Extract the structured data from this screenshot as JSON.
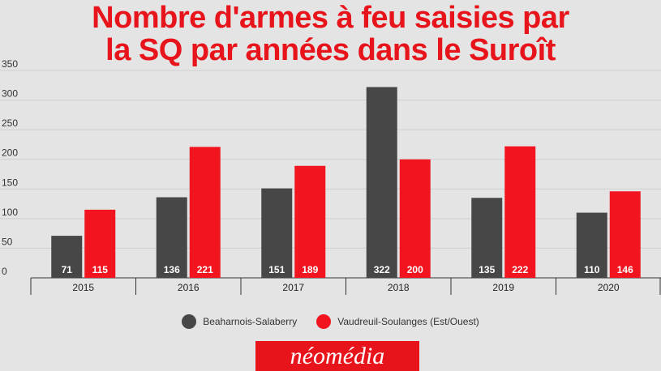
{
  "title_lines": [
    "Nombre d'armes à feu saisies par",
    "la SQ par années dans le Suroît"
  ],
  "brand": "néomédia",
  "colors": {
    "title": "#e8141c",
    "series_dark": "#474747",
    "series_red": "#f2141e",
    "background": "#e4e4e4",
    "logo_bg": "#e8141c"
  },
  "chart_data": {
    "type": "bar",
    "title": "Nombre d'armes à feu saisies par la SQ par années dans le Suroît",
    "categories": [
      "2015",
      "2016",
      "2017",
      "2018",
      "2019",
      "2020"
    ],
    "series": [
      {
        "name": "Beaharnois-Salaberry",
        "values": [
          71,
          136,
          151,
          322,
          135,
          110
        ]
      },
      {
        "name": "Vaudreuil-Soulanges (Est/Ouest)",
        "values": [
          115,
          221,
          189,
          200,
          222,
          146
        ]
      }
    ],
    "yticks": [
      0,
      50,
      100,
      150,
      200,
      250,
      300,
      350
    ],
    "ylim": [
      0,
      350
    ],
    "grid": true,
    "data_labels": "inside-bottom",
    "legend": "bottom-center"
  }
}
